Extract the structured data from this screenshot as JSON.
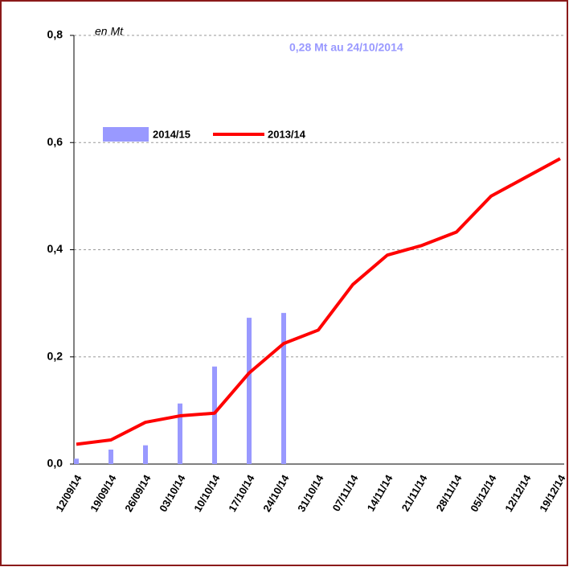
{
  "chart_data": {
    "type": "bar_line",
    "annotations": [
      "en Mt",
      "0,28 Mt au 24/10/2014"
    ],
    "categories": [
      "12/09/14",
      "19/09/14",
      "26/09/14",
      "03/10/14",
      "10/10/14",
      "17/10/14",
      "24/10/14",
      "31/10/14",
      "07/11/14",
      "14/11/14",
      "21/11/14",
      "28/11/14",
      "05/12/14",
      "12/12/14",
      "19/12/14"
    ],
    "series": [
      {
        "name": "2014/15",
        "type": "bar",
        "color": "#9999ff",
        "values": [
          0.01,
          0.027,
          0.035,
          0.113,
          0.182,
          0.273,
          0.282,
          null,
          null,
          null,
          null,
          null,
          null,
          null,
          null
        ]
      },
      {
        "name": "2013/14",
        "type": "line",
        "color": "#ff0000",
        "values": [
          0.037,
          0.045,
          0.078,
          0.09,
          0.095,
          0.17,
          0.225,
          0.25,
          0.335,
          0.39,
          0.408,
          0.433,
          0.5,
          0.535,
          0.57
        ]
      }
    ],
    "ylim": [
      0,
      0.8
    ],
    "yticks": [
      {
        "value": 0,
        "label": "0,0"
      },
      {
        "value": 0.2,
        "label": "0,2"
      },
      {
        "value": 0.4,
        "label": "0,4"
      },
      {
        "value": 0.6,
        "label": "0,6"
      },
      {
        "value": 0.8,
        "label": "0,8"
      }
    ],
    "grid": true
  }
}
